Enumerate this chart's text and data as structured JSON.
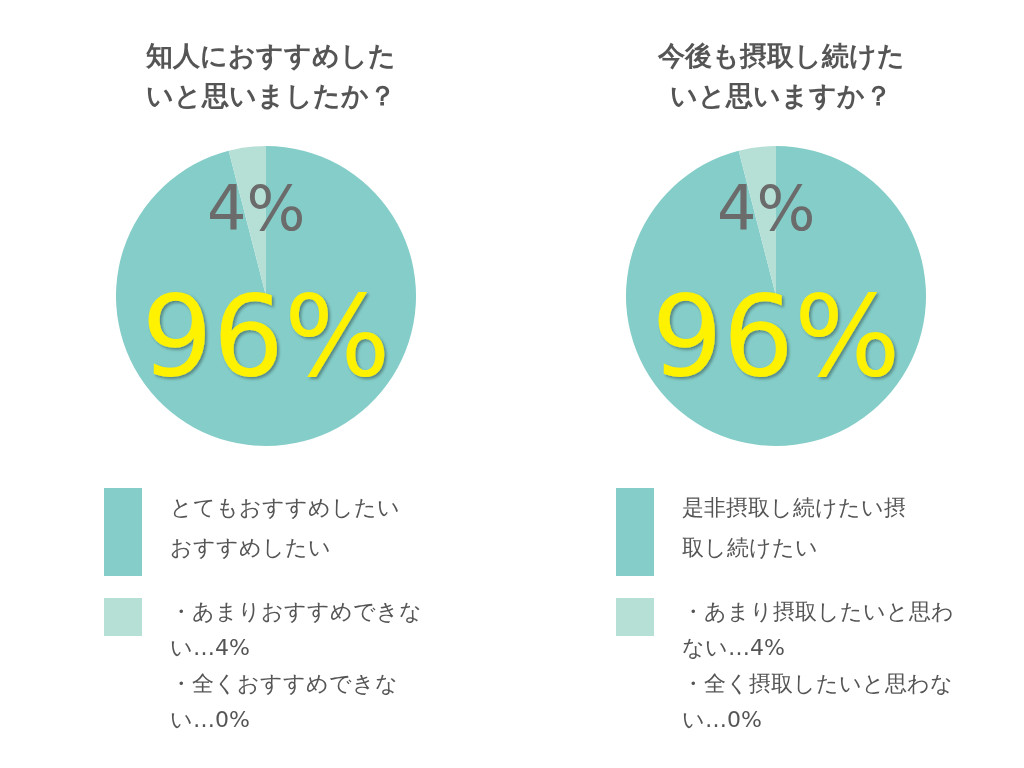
{
  "chart_data": [
    {
      "type": "pie",
      "title": "知人におすすめしたいと思いましたか？",
      "categories": [
        "とてもおすすめしたいおすすめしたい",
        "・あまりおすすめできない…4%・全くおすすめできない…0%"
      ],
      "values": [
        96,
        4
      ],
      "colors": [
        "#84cdc8",
        "#b6e0d6"
      ],
      "value_labels": [
        "96%",
        "4%"
      ],
      "legend": "bottom"
    },
    {
      "type": "pie",
      "title": "今後も摂取し続けたいと思いますか？",
      "categories": [
        "是非摂取し続けたい摂取し続けたい",
        "・あまり摂取したいと思わない…4%・全く摂取したいと思わない…0%"
      ],
      "values": [
        96,
        4
      ],
      "colors": [
        "#84cdc8",
        "#b6e0d6"
      ],
      "value_labels": [
        "96%",
        "4%"
      ],
      "legend": "bottom"
    }
  ]
}
